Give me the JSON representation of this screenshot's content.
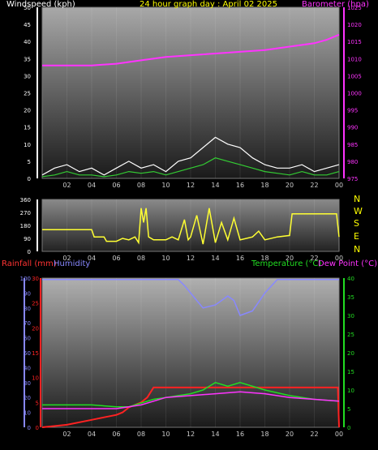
{
  "header": {
    "windspeed_label": "Windspeed (kph)",
    "graph_title": "24 hour graph day : April 02 2025",
    "barometer_label": "Barometer (hpa)"
  },
  "direction_labels": [
    "N",
    "W",
    "S",
    "E",
    "N"
  ],
  "lower_header": {
    "rainfall_label": "Rainfall (mm)",
    "humidity_label": "Humidity",
    "temperature_label": "Temperature (°C)",
    "dewpoint_label": "Dew Point (°C)"
  },
  "colors": {
    "wind": "#ffffff",
    "gust": "#33cc33",
    "barometer": "#ff33ff",
    "direction": "#ffff33",
    "rainfall": "#ff2222",
    "humidity": "#8888ff",
    "temperature": "#22dd22",
    "dewpoint": "#ff33ff",
    "title": "#ffff00"
  },
  "chart_data": [
    {
      "type": "line",
      "x_ticks": [
        "02",
        "04",
        "06",
        "08",
        "10",
        "12",
        "14",
        "16",
        "18",
        "20",
        "22",
        "00"
      ],
      "xlim": [
        0,
        24
      ],
      "y_left": {
        "ticks": [
          0,
          5,
          10,
          15,
          20,
          25,
          30,
          35,
          40,
          45,
          50
        ],
        "ylim": [
          0,
          50
        ]
      },
      "y_right": {
        "ticks": [
          975,
          980,
          985,
          990,
          995,
          1000,
          1005,
          1010,
          1015,
          1020,
          1025
        ],
        "ylim": [
          975,
          1025
        ]
      },
      "series": [
        {
          "key": "wind",
          "values": [
            [
              0,
              1
            ],
            [
              1,
              3
            ],
            [
              2,
              4
            ],
            [
              3,
              2
            ],
            [
              4,
              3
            ],
            [
              5,
              1
            ],
            [
              6,
              3
            ],
            [
              7,
              5
            ],
            [
              8,
              3
            ],
            [
              9,
              4
            ],
            [
              10,
              2
            ],
            [
              11,
              5
            ],
            [
              12,
              6
            ],
            [
              13,
              9
            ],
            [
              14,
              12
            ],
            [
              15,
              10
            ],
            [
              16,
              9
            ],
            [
              17,
              6
            ],
            [
              18,
              4
            ],
            [
              19,
              3
            ],
            [
              20,
              3
            ],
            [
              21,
              4
            ],
            [
              22,
              2
            ],
            [
              23,
              3
            ],
            [
              24,
              4
            ]
          ]
        },
        {
          "key": "gust",
          "values": [
            [
              0,
              0.5
            ],
            [
              1,
              1
            ],
            [
              2,
              2
            ],
            [
              3,
              1
            ],
            [
              4,
              1
            ],
            [
              5,
              0.5
            ],
            [
              6,
              1
            ],
            [
              7,
              2
            ],
            [
              8,
              1.5
            ],
            [
              9,
              2
            ],
            [
              10,
              1
            ],
            [
              11,
              2
            ],
            [
              12,
              3
            ],
            [
              13,
              4
            ],
            [
              14,
              6
            ],
            [
              15,
              5
            ],
            [
              16,
              4
            ],
            [
              17,
              3
            ],
            [
              18,
              2
            ],
            [
              19,
              1.5
            ],
            [
              20,
              1
            ],
            [
              21,
              2
            ],
            [
              22,
              1
            ],
            [
              23,
              1
            ],
            [
              24,
              2
            ]
          ]
        },
        {
          "key": "barometer",
          "values": [
            [
              0,
              1008
            ],
            [
              2,
              1008
            ],
            [
              4,
              1008
            ],
            [
              6,
              1008.5
            ],
            [
              8,
              1009.5
            ],
            [
              10,
              1010.5
            ],
            [
              12,
              1011
            ],
            [
              14,
              1011.5
            ],
            [
              16,
              1012
            ],
            [
              18,
              1012.5
            ],
            [
              20,
              1013.5
            ],
            [
              22,
              1014.5
            ],
            [
              23,
              1015.5
            ],
            [
              24,
              1017
            ]
          ]
        }
      ]
    },
    {
      "type": "line",
      "x_ticks": [
        "02",
        "04",
        "06",
        "08",
        "10",
        "12",
        "14",
        "16",
        "18",
        "20",
        "22",
        "00"
      ],
      "xlim": [
        0,
        24
      ],
      "y_left": {
        "ticks": [
          0,
          90,
          180,
          270,
          360
        ],
        "ylim": [
          0,
          360
        ]
      },
      "series": [
        {
          "key": "direction",
          "values": [
            [
              0,
              150
            ],
            [
              4,
              150
            ],
            [
              4.2,
              100
            ],
            [
              5,
              100
            ],
            [
              5.2,
              70
            ],
            [
              6,
              70
            ],
            [
              6.5,
              90
            ],
            [
              7,
              80
            ],
            [
              7.5,
              100
            ],
            [
              7.8,
              60
            ],
            [
              8,
              300
            ],
            [
              8.2,
              200
            ],
            [
              8.4,
              300
            ],
            [
              8.6,
              100
            ],
            [
              9,
              80
            ],
            [
              10,
              80
            ],
            [
              10.5,
              100
            ],
            [
              11,
              80
            ],
            [
              11.5,
              220
            ],
            [
              11.8,
              80
            ],
            [
              12,
              100
            ],
            [
              12.5,
              250
            ],
            [
              13,
              50
            ],
            [
              13.5,
              300
            ],
            [
              14,
              60
            ],
            [
              14.5,
              200
            ],
            [
              15,
              80
            ],
            [
              15.5,
              230
            ],
            [
              16,
              80
            ],
            [
              17,
              100
            ],
            [
              17.5,
              140
            ],
            [
              18,
              80
            ],
            [
              19,
              100
            ],
            [
              20,
              110
            ],
            [
              20.2,
              260
            ],
            [
              21,
              260
            ],
            [
              23.8,
              260
            ],
            [
              24,
              100
            ]
          ]
        }
      ]
    },
    {
      "type": "line",
      "x_ticks": [
        "02",
        "04",
        "06",
        "08",
        "10",
        "12",
        "14",
        "16",
        "18",
        "20",
        "22",
        "00"
      ],
      "xlim": [
        0,
        24
      ],
      "y_left_humidity": {
        "ticks": [
          0,
          10,
          20,
          30,
          40,
          50,
          60,
          70,
          80,
          90,
          100
        ],
        "ylim": [
          0,
          100
        ]
      },
      "y_left_rain": {
        "ticks": [
          0,
          5,
          10,
          15,
          20,
          25,
          30
        ],
        "ylim": [
          0,
          30
        ]
      },
      "y_right": {
        "ticks": [
          0,
          5,
          10,
          15,
          20,
          25,
          30,
          35,
          40
        ],
        "ylim": [
          0,
          40
        ]
      },
      "series": [
        {
          "key": "rainfall",
          "values": [
            [
              0,
              0
            ],
            [
              2,
              0.5
            ],
            [
              4,
              1.5
            ],
            [
              5,
              2
            ],
            [
              6,
              2.5
            ],
            [
              6.5,
              3
            ],
            [
              7,
              4
            ],
            [
              8,
              5
            ],
            [
              8.5,
              6
            ],
            [
              9,
              8
            ],
            [
              20,
              8
            ],
            [
              23.9,
              8
            ],
            [
              24,
              0
            ]
          ]
        },
        {
          "key": "humidity",
          "values": [
            [
              0,
              99
            ],
            [
              11,
              99
            ],
            [
              11.5,
              95
            ],
            [
              12,
              90
            ],
            [
              12.5,
              85
            ],
            [
              13,
              80
            ],
            [
              14,
              82
            ],
            [
              15,
              88
            ],
            [
              15.5,
              85
            ],
            [
              16,
              75
            ],
            [
              17,
              78
            ],
            [
              18,
              90
            ],
            [
              19,
              99
            ],
            [
              24,
              99
            ]
          ]
        },
        {
          "key": "temperature",
          "values": [
            [
              0,
              6
            ],
            [
              4,
              6
            ],
            [
              6,
              5.5
            ],
            [
              7,
              5.5
            ],
            [
              8,
              6.5
            ],
            [
              9,
              7.5
            ],
            [
              10,
              8
            ],
            [
              11,
              8.5
            ],
            [
              12,
              9
            ],
            [
              13,
              10
            ],
            [
              14,
              12
            ],
            [
              15,
              11
            ],
            [
              16,
              12
            ],
            [
              17,
              11
            ],
            [
              18,
              10
            ],
            [
              20,
              8.5
            ],
            [
              22,
              7.5
            ],
            [
              24,
              7
            ]
          ]
        },
        {
          "key": "dewpoint",
          "values": [
            [
              0,
              5
            ],
            [
              4,
              5
            ],
            [
              6,
              5
            ],
            [
              7,
              5.5
            ],
            [
              8,
              6
            ],
            [
              9,
              7
            ],
            [
              10,
              8
            ],
            [
              12,
              8.5
            ],
            [
              14,
              9
            ],
            [
              16,
              9.5
            ],
            [
              18,
              9
            ],
            [
              20,
              8
            ],
            [
              22,
              7.5
            ],
            [
              24,
              7
            ]
          ]
        }
      ]
    }
  ]
}
